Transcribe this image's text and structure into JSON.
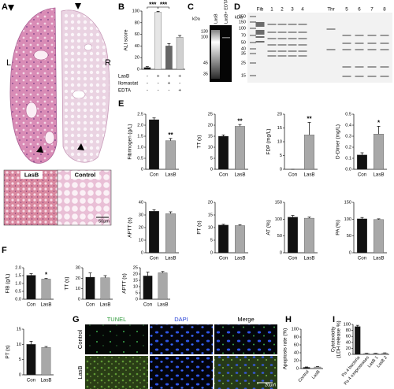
{
  "panel_labels": [
    "A",
    "B",
    "C",
    "D",
    "E",
    "F",
    "G",
    "H",
    "I"
  ],
  "histology": {
    "left": "L",
    "right": "R",
    "insets": [
      "LasB",
      "Control"
    ],
    "scale": "50µm"
  },
  "gels": {
    "C": {
      "unit": "kDa",
      "ladder": [
        "130",
        "100",
        "45",
        "35"
      ],
      "lanes": [
        "LasB",
        "LasB+ EDTA"
      ]
    },
    "D": {
      "unit": "kDa",
      "ladder": [
        "250",
        "150",
        "100",
        "70",
        "50",
        "40",
        "35",
        "25",
        "15"
      ],
      "lanes": [
        "Fib",
        "1",
        "2",
        "3",
        "4",
        "Thr",
        "5",
        "6",
        "7",
        "8"
      ]
    }
  },
  "microscopy": {
    "columns": [
      "TUNEL",
      "DAPI",
      "Merge"
    ],
    "rows": [
      "Control",
      "LasB"
    ],
    "scale": "20µm"
  },
  "chart_data": [
    {
      "type": "bar",
      "ylabel": "ALI score",
      "values": [
        3,
        98,
        40,
        55
      ],
      "errors": [
        1.5,
        1.5,
        4,
        3
      ],
      "colors": [
        "#111111",
        "#e6e6e6",
        "#666666",
        "#d0d0d0"
      ],
      "ylim": [
        0,
        100
      ],
      "yticks": [
        0,
        20,
        40,
        60,
        80,
        100
      ],
      "significance": [
        "***",
        "***"
      ],
      "conditions": [
        {
          "name": "LasB",
          "signs": [
            "-",
            "+",
            "+",
            "+"
          ]
        },
        {
          "name": "Ilomastat",
          "signs": [
            "-",
            "-",
            "+",
            "-"
          ]
        },
        {
          "name": "EDTA",
          "signs": [
            "-",
            "-",
            "-",
            "+"
          ]
        }
      ]
    },
    {
      "type": "bar",
      "ylabel": "Fibrinogen (g/L)",
      "categories": [
        "Con",
        "LasB"
      ],
      "values": [
        2.25,
        1.3
      ],
      "errors": [
        0.08,
        0.1
      ],
      "colors": [
        "#111111",
        "#a8a8a8"
      ],
      "ylim": [
        0,
        2.5
      ],
      "yticks": [
        0,
        0.5,
        {
          "value": 1,
          "label": "1.0"
        },
        1.5,
        {
          "value": 2,
          "label": "2.0"
        },
        2.5
      ],
      "annotations": [
        null,
        "**"
      ]
    },
    {
      "type": "bar",
      "ylabel": "TT (s)",
      "categories": [
        "Con",
        "LasB"
      ],
      "values": [
        15,
        19.5
      ],
      "errors": [
        0.6,
        0.8
      ],
      "colors": [
        "#111111",
        "#a8a8a8"
      ],
      "ylim": [
        0,
        25
      ],
      "yticks": [
        0,
        5,
        10,
        15,
        20,
        25
      ],
      "annotations": [
        null,
        "**"
      ]
    },
    {
      "type": "bar",
      "ylabel": "FDP (mg/L)",
      "categories": [
        "Con",
        "LasB"
      ],
      "values": [
        0,
        12.5
      ],
      "errors": [
        0,
        4.5
      ],
      "colors": [
        "#111111",
        "#a8a8a8"
      ],
      "ylim": [
        0,
        20
      ],
      "yticks": [
        0,
        5,
        10,
        15,
        20
      ],
      "annotations": [
        null,
        "**"
      ]
    },
    {
      "type": "bar",
      "ylabel": "D-Dimer (mg/L)",
      "categories": [
        "Con",
        "LasB"
      ],
      "values": [
        0.13,
        0.32
      ],
      "errors": [
        0.02,
        0.07
      ],
      "colors": [
        "#111111",
        "#a8a8a8"
      ],
      "ylim": [
        0,
        0.5
      ],
      "yticks": [
        {
          "value": 0,
          "label": "0.0"
        },
        0.1,
        0.2,
        0.3,
        0.4,
        0.5
      ],
      "annotations": [
        null,
        "*"
      ]
    },
    {
      "type": "bar",
      "ylabel": "APTT (s)",
      "categories": [
        "Con",
        "LasB"
      ],
      "values": [
        33,
        31
      ],
      "errors": [
        1.2,
        1.5
      ],
      "colors": [
        "#111111",
        "#a8a8a8"
      ],
      "ylim": [
        0,
        40
      ],
      "yticks": [
        0,
        10,
        20,
        30,
        40
      ]
    },
    {
      "type": "bar",
      "ylabel": "PT (s)",
      "categories": [
        "Con",
        "LasB"
      ],
      "values": [
        11,
        10.8
      ],
      "errors": [
        0.3,
        0.3
      ],
      "colors": [
        "#111111",
        "#a8a8a8"
      ],
      "ylim": [
        0,
        20
      ],
      "yticks": [
        0,
        5,
        10,
        15,
        20
      ]
    },
    {
      "type": "bar",
      "ylabel": "AT (%)",
      "categories": [
        "Con",
        "LasB"
      ],
      "values": [
        106,
        103
      ],
      "errors": [
        5,
        3
      ],
      "colors": [
        "#111111",
        "#a8a8a8"
      ],
      "ylim": [
        0,
        150
      ],
      "yticks": [
        0,
        50,
        100,
        150
      ]
    },
    {
      "type": "bar",
      "ylabel": "PA (%)",
      "categories": [
        "Con",
        "LasB"
      ],
      "values": [
        101,
        99
      ],
      "errors": [
        4,
        2
      ],
      "colors": [
        "#111111",
        "#a8a8a8"
      ],
      "ylim": [
        0,
        150
      ],
      "yticks": [
        0,
        50,
        100,
        150
      ]
    },
    {
      "type": "bar",
      "ylabel": "FIB (g/L)",
      "categories": [
        "Con",
        "LasB"
      ],
      "values": [
        1.52,
        1.28
      ],
      "errors": [
        0.1,
        0.04
      ],
      "colors": [
        "#111111",
        "#a8a8a8"
      ],
      "ylim": [
        0,
        2
      ],
      "yticks": [
        {
          "value": 0,
          "label": "0.0"
        },
        0.5,
        {
          "value": 1,
          "label": "1.0"
        },
        1.5,
        {
          "value": 2,
          "label": "2.0"
        }
      ],
      "annotations": [
        null,
        "*"
      ]
    },
    {
      "type": "bar",
      "ylabel": "TT (s)",
      "categories": [
        "Con",
        "LasB"
      ],
      "values": [
        21,
        20.5
      ],
      "errors": [
        4,
        2
      ],
      "colors": [
        "#111111",
        "#a8a8a8"
      ],
      "ylim": [
        0,
        30
      ],
      "yticks": [
        0,
        10,
        20,
        30
      ]
    },
    {
      "type": "bar",
      "ylabel": "APTT (s)",
      "categories": [
        "Con",
        "LasB"
      ],
      "values": [
        18.5,
        21
      ],
      "errors": [
        3,
        1
      ],
      "colors": [
        "#111111",
        "#a8a8a8"
      ],
      "ylim": [
        0,
        25
      ],
      "yticks": [
        0,
        5,
        10,
        15,
        20,
        25
      ]
    },
    {
      "type": "bar",
      "ylabel": "PT (s)",
      "categories": [
        "Con",
        "LasB"
      ],
      "values": [
        10,
        9
      ],
      "errors": [
        1,
        0.3
      ],
      "colors": [
        "#111111",
        "#a8a8a8"
      ],
      "ylim": [
        0,
        15
      ],
      "yticks": [
        0,
        5,
        10,
        15
      ]
    },
    {
      "type": "bar",
      "ylabel": "Apoptosis rate (%)",
      "categories": [
        "Control",
        "LasB"
      ],
      "values": [
        3,
        4
      ],
      "errors": [
        1,
        1
      ],
      "colors": [
        "#111111",
        "#a8a8a8"
      ],
      "ylim": [
        0,
        100
      ],
      "yticks": [
        0,
        20,
        40,
        60,
        80,
        100
      ]
    },
    {
      "type": "bar",
      "ylabel": [
        "Cytotoxicity",
        "(LDH release %)"
      ],
      "categories": [
        "Pa 4 bacteria",
        "Pa 4 exoproteases",
        "LasB 1",
        "LasB 2"
      ],
      "values": [
        93,
        3,
        3,
        4
      ],
      "errors": [
        4,
        1,
        1,
        1
      ],
      "colors": [
        "#111111",
        "#a8a8a8",
        "#a8a8a8",
        "#a8a8a8"
      ],
      "ylim": [
        0,
        100
      ],
      "yticks": [
        0,
        20,
        40,
        60,
        80,
        100
      ]
    }
  ]
}
